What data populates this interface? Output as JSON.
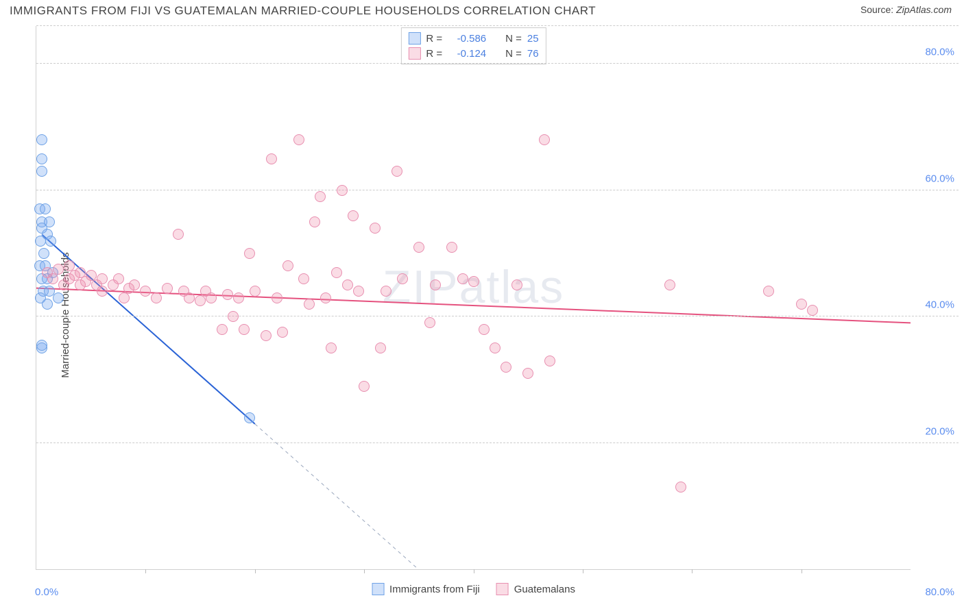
{
  "title": "IMMIGRANTS FROM FIJI VS GUATEMALAN MARRIED-COUPLE HOUSEHOLDS CORRELATION CHART",
  "source_prefix": "Source: ",
  "source_name": "ZipAtlas.com",
  "watermark": "ZIPatlas",
  "chart": {
    "type": "scatter",
    "ylabel": "Married-couple Households",
    "xlim": [
      0,
      80
    ],
    "ylim": [
      0,
      86
    ],
    "x_axis_labels": [
      {
        "pos": 0,
        "text": "0.0%"
      },
      {
        "pos": 80,
        "text": "80.0%"
      }
    ],
    "x_ticks_minor": [
      10,
      20,
      30,
      40,
      50,
      60,
      70
    ],
    "y_gridlines": [
      20,
      40,
      60,
      80
    ],
    "y_tick_labels": [
      "20.0%",
      "40.0%",
      "60.0%",
      "80.0%"
    ],
    "background_color": "#ffffff",
    "grid_color": "#cccccc",
    "marker_radius": 8,
    "marker_stroke_width": 1.2,
    "series": [
      {
        "name": "Immigrants from Fiji",
        "fill": "rgba(120,170,240,0.35)",
        "stroke": "#6fa2e6",
        "R": "-0.586",
        "N": "25",
        "trend": {
          "x1": 0.5,
          "y1": 53,
          "x2": 20,
          "y2": 23,
          "extend_to_x": 34,
          "color": "#2a63d6",
          "width": 2
        },
        "points": [
          [
            0.5,
            68
          ],
          [
            0.5,
            65
          ],
          [
            0.5,
            63
          ],
          [
            0.3,
            57
          ],
          [
            0.8,
            57
          ],
          [
            0.5,
            55
          ],
          [
            1.2,
            55
          ],
          [
            0.5,
            54
          ],
          [
            1.0,
            53
          ],
          [
            0.4,
            52
          ],
          [
            1.3,
            52
          ],
          [
            0.7,
            50
          ],
          [
            0.3,
            48
          ],
          [
            0.8,
            48
          ],
          [
            1.5,
            47
          ],
          [
            0.5,
            46
          ],
          [
            1.0,
            46
          ],
          [
            0.6,
            44
          ],
          [
            1.2,
            44
          ],
          [
            0.4,
            43
          ],
          [
            2.0,
            43
          ],
          [
            1.0,
            42
          ],
          [
            0.5,
            35
          ],
          [
            0.5,
            35.5
          ],
          [
            19.5,
            24
          ]
        ]
      },
      {
        "name": "Guatemalans",
        "fill": "rgba(240,140,170,0.30)",
        "stroke": "#e88fb0",
        "R": "-0.124",
        "N": "76",
        "trend": {
          "x1": 0,
          "y1": 44.5,
          "x2": 80,
          "y2": 39,
          "color": "#e5517e",
          "width": 2
        },
        "points": [
          [
            1,
            47
          ],
          [
            1.5,
            46
          ],
          [
            2,
            47.5
          ],
          [
            2.5,
            45
          ],
          [
            3,
            46
          ],
          [
            3,
            48
          ],
          [
            3.5,
            46.5
          ],
          [
            4,
            45
          ],
          [
            4,
            47
          ],
          [
            4.5,
            45.5
          ],
          [
            5,
            46.5
          ],
          [
            5.5,
            45
          ],
          [
            6,
            46
          ],
          [
            6,
            44
          ],
          [
            7,
            45
          ],
          [
            7.5,
            46
          ],
          [
            8,
            43
          ],
          [
            8.5,
            44.5
          ],
          [
            9,
            45
          ],
          [
            10,
            44
          ],
          [
            11,
            43
          ],
          [
            12,
            44.5
          ],
          [
            13,
            53
          ],
          [
            13.5,
            44
          ],
          [
            14,
            43
          ],
          [
            15,
            42.5
          ],
          [
            15.5,
            44
          ],
          [
            16,
            43
          ],
          [
            17,
            38
          ],
          [
            17.5,
            43.5
          ],
          [
            18,
            40
          ],
          [
            18.5,
            43
          ],
          [
            19,
            38
          ],
          [
            19.5,
            50
          ],
          [
            20,
            44
          ],
          [
            21,
            37
          ],
          [
            21.5,
            65
          ],
          [
            22,
            43
          ],
          [
            22.5,
            37.5
          ],
          [
            23,
            48
          ],
          [
            24,
            68
          ],
          [
            24.5,
            46
          ],
          [
            25,
            42
          ],
          [
            25.5,
            55
          ],
          [
            26,
            59
          ],
          [
            26.5,
            43
          ],
          [
            27,
            35
          ],
          [
            27.5,
            47
          ],
          [
            28,
            60
          ],
          [
            28.5,
            45
          ],
          [
            29,
            56
          ],
          [
            29.5,
            44
          ],
          [
            30,
            29
          ],
          [
            31,
            54
          ],
          [
            31.5,
            35
          ],
          [
            32,
            44
          ],
          [
            33,
            63
          ],
          [
            33.5,
            46
          ],
          [
            35,
            51
          ],
          [
            36,
            39
          ],
          [
            36.5,
            45
          ],
          [
            38,
            51
          ],
          [
            39,
            46
          ],
          [
            40,
            45.5
          ],
          [
            41,
            38
          ],
          [
            42,
            35
          ],
          [
            43,
            32
          ],
          [
            44,
            45
          ],
          [
            45,
            31
          ],
          [
            46.5,
            68
          ],
          [
            47,
            33
          ],
          [
            58,
            45
          ],
          [
            59,
            13
          ],
          [
            67,
            44
          ],
          [
            70,
            42
          ],
          [
            71,
            41
          ]
        ]
      }
    ]
  },
  "legend_top_labels": {
    "R": "R =",
    "N": "N ="
  },
  "legend_bottom": [
    "Immigrants from Fiji",
    "Guatemalans"
  ]
}
